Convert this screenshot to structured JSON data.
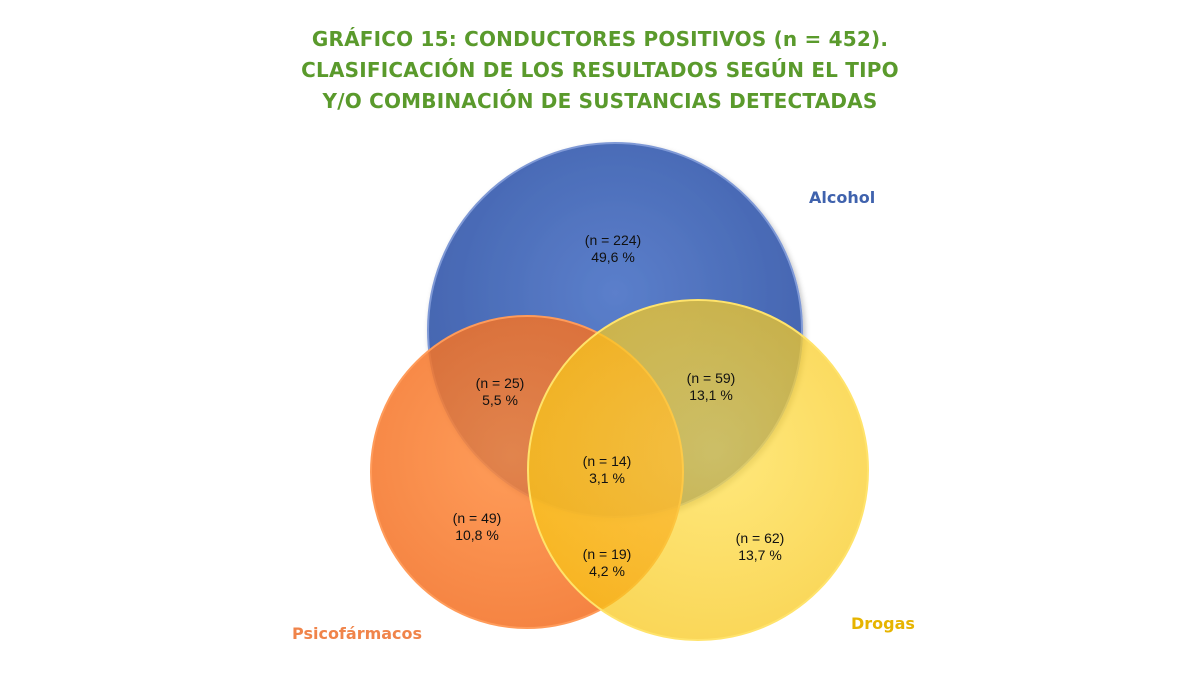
{
  "title": {
    "line1": "GRÁFICO 15: CONDUCTORES POSITIVOS (n = 452).",
    "line2": "CLASIFICACIÓN DE LOS RESULTADOS SEGÚN EL TIPO",
    "line3": "Y/O COMBINACIÓN DE SUSTANCIAS DETECTADAS"
  },
  "sets": [
    {
      "name": "Alcohol",
      "color": "#4a6db8",
      "label_color": "#3f62ad"
    },
    {
      "name": "Psicofármacos",
      "color": "#ff7a2a",
      "label_color": "#f0844a"
    },
    {
      "name": "Drogas",
      "color": "#ffd21c",
      "label_color": "#e6b400"
    }
  ],
  "regions": {
    "alcohol_only": {
      "n": "(n = 224)",
      "pct": "49,6 %"
    },
    "alcohol_psico": {
      "n": "(n = 25)",
      "pct": "5,5 %"
    },
    "alcohol_drogas": {
      "n": "(n = 59)",
      "pct": "13,1 %"
    },
    "all_three": {
      "n": "(n = 14)",
      "pct": "3,1 %"
    },
    "psico_only": {
      "n": "(n = 49)",
      "pct": "10,8 %"
    },
    "psico_drogas": {
      "n": "(n = 19)",
      "pct": "4,2 %"
    },
    "drogas_only": {
      "n": "(n = 62)",
      "pct": "13,7 %"
    }
  }
}
